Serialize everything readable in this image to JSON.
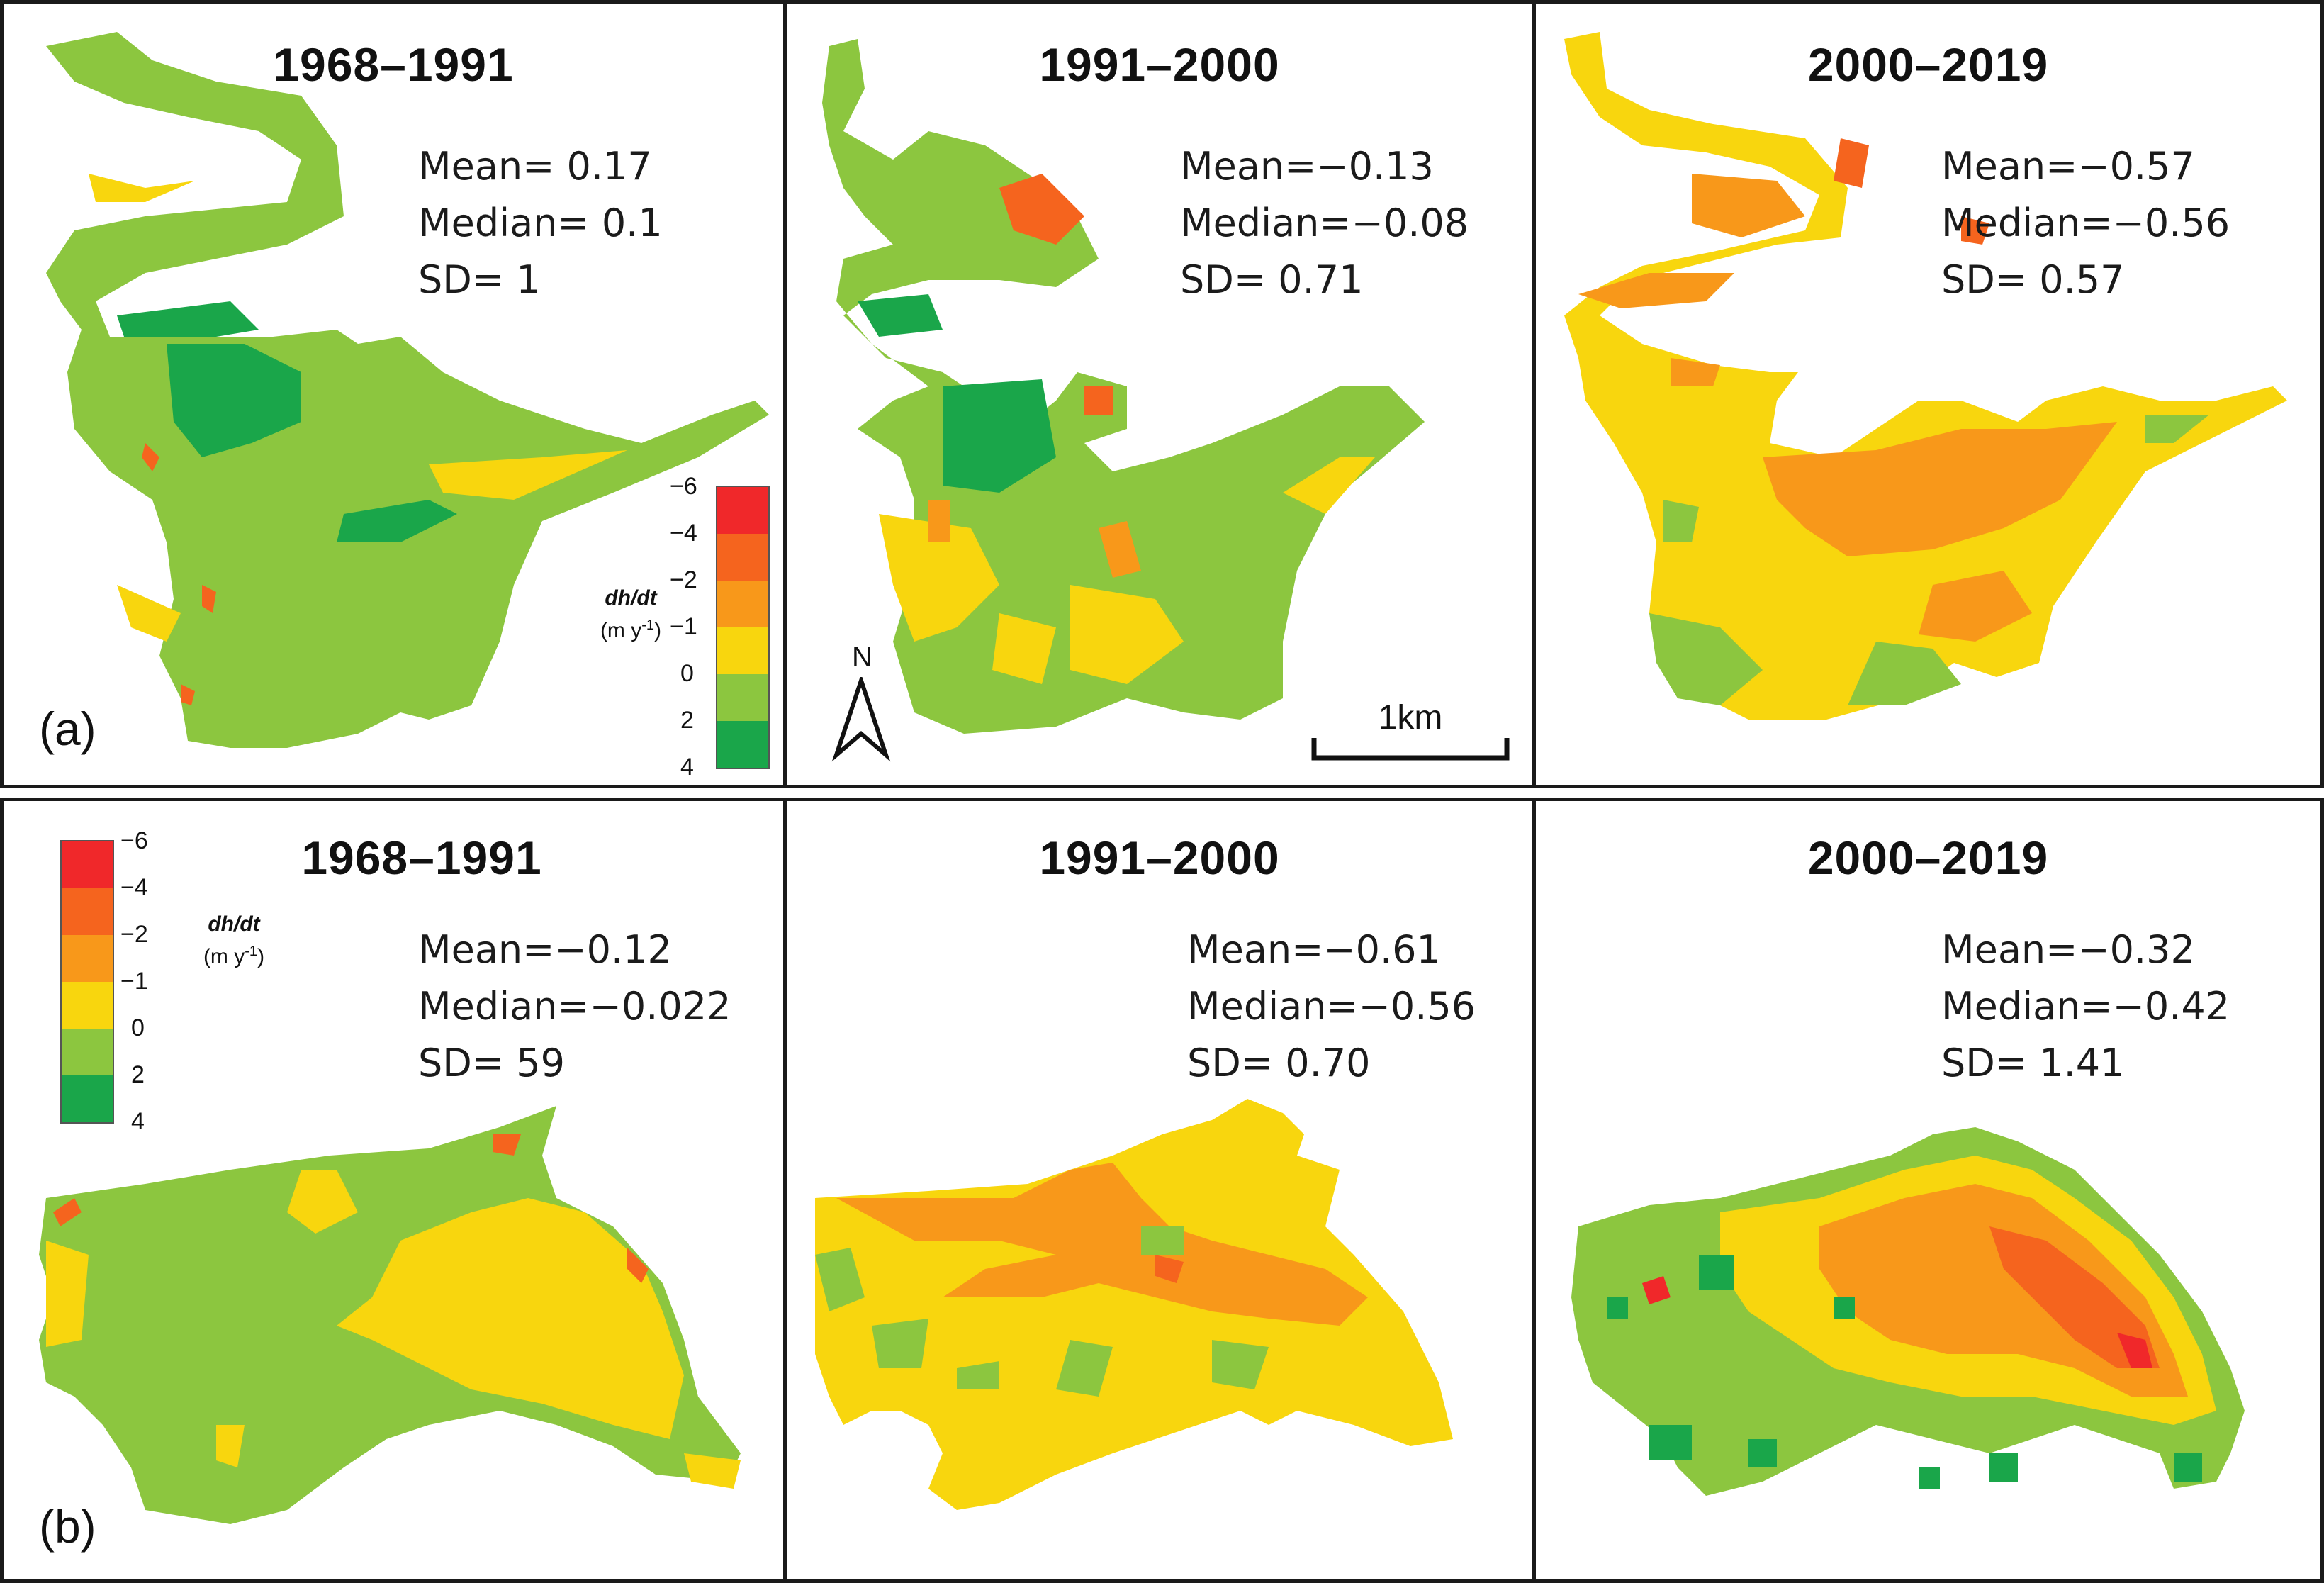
{
  "figure": {
    "row_a": {
      "letter": "(a)",
      "panels": [
        {
          "title": "1968–1991",
          "mean": "Mean= 0.17",
          "median": "Median= 0.1",
          "sd": "SD= 1"
        },
        {
          "title": "1991–2000",
          "mean": "Mean=−0.13",
          "median": "Median=−0.08",
          "sd": "SD= 0.71"
        },
        {
          "title": "2000–2019",
          "mean": "Mean=−0.57",
          "median": "Median=−0.56",
          "sd": "SD= 0.57"
        }
      ]
    },
    "row_b": {
      "letter": "(b)",
      "panels": [
        {
          "title": "1968–1991",
          "mean": "Mean=−0.12",
          "median": "Median=−0.022",
          "sd": "SD= 59"
        },
        {
          "title": "1991–2000",
          "mean": "Mean=−0.61",
          "median": "Median=−0.56",
          "sd": "SD= 0.70"
        },
        {
          "title": "2000–2019",
          "mean": "Mean=−0.32",
          "median": "Median=−0.42",
          "sd": "SD= 1.41"
        }
      ]
    }
  },
  "legend": {
    "label_main": "dh/dt",
    "label_unit_a": "(m y",
    "label_unit_sup": "-1",
    "label_unit_b": ")",
    "ticks": [
      "−6",
      "−4",
      "−2",
      "−1",
      "0",
      "2",
      "4"
    ],
    "colors": [
      "#f0282a",
      "#f5641e",
      "#f8981a",
      "#f8d60e",
      "#8cc63f",
      "#1aa64a"
    ]
  },
  "north_label": "N",
  "scale_label": "1km",
  "colors": {
    "red": "#f0282a",
    "orange_red": "#f5641e",
    "orange": "#f8981a",
    "yellow": "#f8d60e",
    "light_green": "#8cc63f",
    "dark_green": "#1aa64a"
  }
}
